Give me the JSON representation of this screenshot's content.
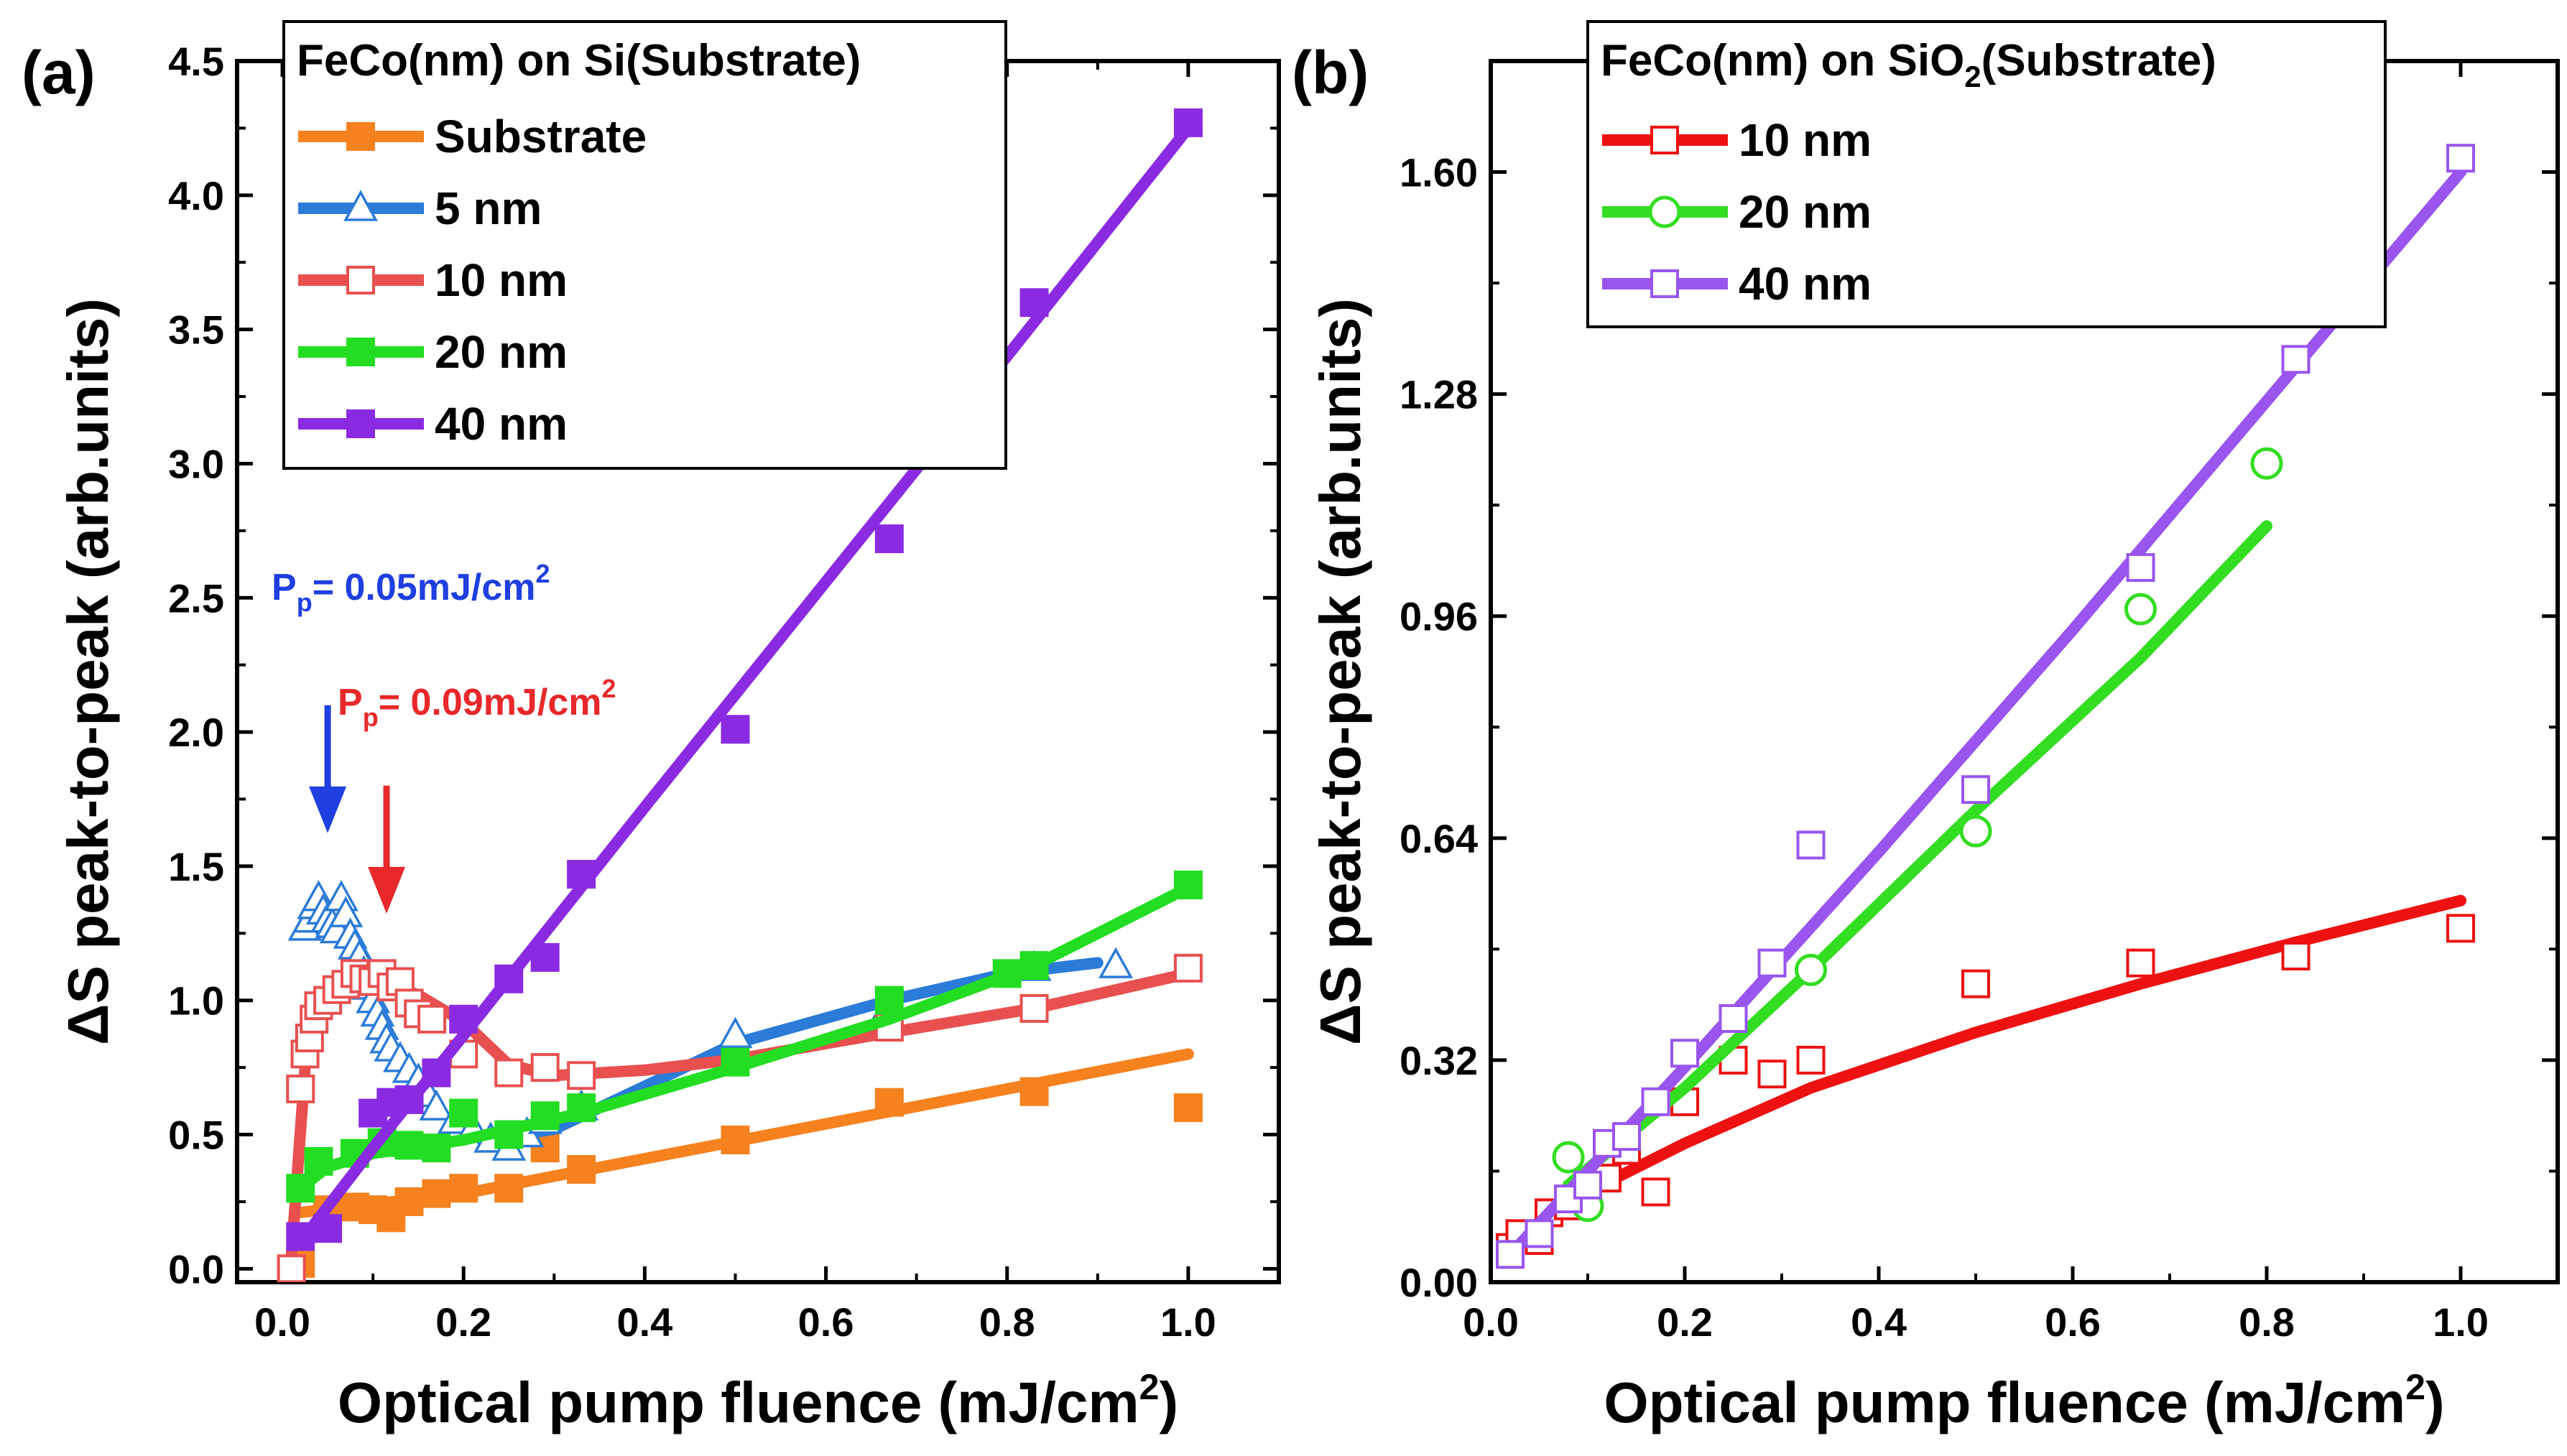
{
  "chart_data": [
    {
      "id": "a",
      "type": "scatter",
      "panel_label": "(a)",
      "xlabel": "Optical pump fluence (mJ/cm",
      "xlabel_sup": "2",
      "xlabel_close": ")",
      "ylabel": "ΔS peak-to-peak (arb.units)",
      "xlim": [
        -0.05,
        1.1
      ],
      "ylim": [
        -0.05,
        4.5
      ],
      "xticks": [
        0.0,
        0.2,
        0.4,
        0.6,
        0.8,
        1.0
      ],
      "xtick_labels": [
        "0.0",
        "0.2",
        "0.4",
        "0.6",
        "0.8",
        "1.0"
      ],
      "yticks": [
        0.0,
        0.5,
        1.0,
        1.5,
        2.0,
        2.5,
        3.0,
        3.5,
        4.0,
        4.5
      ],
      "ytick_labels": [
        "0.0",
        "0.5",
        "1.0",
        "1.5",
        "2.0",
        "2.5",
        "3.0",
        "3.5",
        "4.0",
        "4.5"
      ],
      "legend": {
        "title_pre": "FeCo(nm) on Si(Substrate)",
        "title_sub": "",
        "title_post": "",
        "location": "top-left"
      },
      "annotations": [
        {
          "id": "pp1",
          "text_pre": "P",
          "text_sub": "p",
          "text_mid": "= 0.05mJ/cm",
          "text_sup": "2",
          "color": "#1f3fe0",
          "arrow_x": 0.05,
          "arrow_from_y": 2.1,
          "arrow_to_y": 1.65
        },
        {
          "id": "pp2",
          "text_pre": "P",
          "text_sub": "p",
          "text_mid": "= 0.09mJ/cm",
          "text_sup": "2",
          "color": "#e8282a",
          "arrow_x": 0.115,
          "arrow_from_y": 1.8,
          "arrow_to_y": 1.35
        }
      ],
      "series": [
        {
          "name": "Substrate",
          "color": "#f5821f",
          "marker": "square",
          "filled": true,
          "points": [
            [
              0.02,
              0.02
            ],
            [
              0.05,
              0.22
            ],
            [
              0.08,
              0.23
            ],
            [
              0.1,
              0.22
            ],
            [
              0.12,
              0.19
            ],
            [
              0.14,
              0.25
            ],
            [
              0.17,
              0.28
            ],
            [
              0.2,
              0.3
            ],
            [
              0.25,
              0.3
            ],
            [
              0.29,
              0.45
            ],
            [
              0.33,
              0.37
            ],
            [
              0.5,
              0.48
            ],
            [
              0.67,
              0.62
            ],
            [
              0.83,
              0.66
            ],
            [
              1.0,
              0.6
            ]
          ],
          "fit": [
            [
              0.02,
              0.21
            ],
            [
              0.2,
              0.28
            ],
            [
              0.4,
              0.41
            ],
            [
              0.6,
              0.54
            ],
            [
              0.8,
              0.67
            ],
            [
              1.0,
              0.8
            ]
          ]
        },
        {
          "name": "5 nm",
          "color": "#2b7bd8",
          "marker": "triangle",
          "filled": false,
          "points": [
            [
              0.025,
              1.27
            ],
            [
              0.03,
              1.3
            ],
            [
              0.035,
              1.35
            ],
            [
              0.04,
              1.38
            ],
            [
              0.045,
              1.33
            ],
            [
              0.05,
              1.3
            ],
            [
              0.055,
              1.28
            ],
            [
              0.06,
              1.26
            ],
            [
              0.065,
              1.38
            ],
            [
              0.07,
              1.32
            ],
            [
              0.075,
              1.24
            ],
            [
              0.08,
              1.2
            ],
            [
              0.085,
              1.16
            ],
            [
              0.09,
              1.1
            ],
            [
              0.095,
              1.05
            ],
            [
              0.1,
              1.0
            ],
            [
              0.105,
              0.95
            ],
            [
              0.11,
              0.9
            ],
            [
              0.115,
              0.85
            ],
            [
              0.12,
              0.82
            ],
            [
              0.13,
              0.78
            ],
            [
              0.14,
              0.74
            ],
            [
              0.15,
              0.7
            ],
            [
              0.16,
              0.65
            ],
            [
              0.17,
              0.6
            ],
            [
              0.19,
              0.55
            ],
            [
              0.21,
              0.52
            ],
            [
              0.23,
              0.48
            ],
            [
              0.25,
              0.45
            ],
            [
              0.27,
              0.5
            ],
            [
              0.29,
              0.55
            ],
            [
              0.33,
              0.6
            ],
            [
              0.5,
              0.87
            ],
            [
              0.67,
              0.98
            ],
            [
              0.83,
              1.12
            ],
            [
              0.92,
              1.13
            ]
          ],
          "fit": [
            [
              0.22,
              0.48
            ],
            [
              0.3,
              0.52
            ],
            [
              0.4,
              0.68
            ],
            [
              0.5,
              0.84
            ],
            [
              0.67,
              1.0
            ],
            [
              0.8,
              1.1
            ],
            [
              0.9,
              1.14
            ]
          ]
        },
        {
          "name": "10 nm",
          "color": "#e85050",
          "marker": "square",
          "filled": false,
          "points": [
            [
              0.01,
              0.0
            ],
            [
              0.02,
              0.67
            ],
            [
              0.025,
              0.8
            ],
            [
              0.03,
              0.86
            ],
            [
              0.035,
              0.93
            ],
            [
              0.04,
              0.98
            ],
            [
              0.05,
              1.0
            ],
            [
              0.06,
              1.04
            ],
            [
              0.07,
              1.06
            ],
            [
              0.08,
              1.1
            ],
            [
              0.09,
              1.08
            ],
            [
              0.1,
              1.07
            ],
            [
              0.11,
              1.1
            ],
            [
              0.12,
              1.05
            ],
            [
              0.13,
              1.07
            ],
            [
              0.14,
              0.99
            ],
            [
              0.15,
              0.95
            ],
            [
              0.165,
              0.93
            ],
            [
              0.2,
              0.8
            ],
            [
              0.25,
              0.73
            ],
            [
              0.29,
              0.75
            ],
            [
              0.33,
              0.72
            ],
            [
              0.67,
              0.9
            ],
            [
              0.83,
              0.97
            ],
            [
              1.0,
              1.12
            ]
          ],
          "fit": [
            [
              0.01,
              0.05
            ],
            [
              0.025,
              0.75
            ],
            [
              0.05,
              1.0
            ],
            [
              0.1,
              1.08
            ],
            [
              0.15,
              1.02
            ],
            [
              0.2,
              0.92
            ],
            [
              0.25,
              0.76
            ],
            [
              0.3,
              0.72
            ],
            [
              0.4,
              0.74
            ],
            [
              0.5,
              0.78
            ],
            [
              0.67,
              0.88
            ],
            [
              0.83,
              0.97
            ],
            [
              1.0,
              1.1
            ]
          ]
        },
        {
          "name": "20 nm",
          "color": "#22dd22",
          "marker": "square",
          "filled": true,
          "points": [
            [
              0.02,
              0.3
            ],
            [
              0.04,
              0.4
            ],
            [
              0.08,
              0.43
            ],
            [
              0.11,
              0.47
            ],
            [
              0.14,
              0.46
            ],
            [
              0.17,
              0.45
            ],
            [
              0.2,
              0.58
            ],
            [
              0.25,
              0.5
            ],
            [
              0.29,
              0.57
            ],
            [
              0.33,
              0.6
            ],
            [
              0.5,
              0.77
            ],
            [
              0.67,
              1.0
            ],
            [
              0.8,
              1.1
            ],
            [
              0.83,
              1.13
            ],
            [
              1.0,
              1.43
            ]
          ],
          "fit": [
            [
              0.02,
              0.3
            ],
            [
              0.05,
              0.38
            ],
            [
              0.1,
              0.43
            ],
            [
              0.2,
              0.48
            ],
            [
              0.33,
              0.58
            ],
            [
              0.5,
              0.75
            ],
            [
              0.67,
              0.93
            ],
            [
              0.83,
              1.13
            ],
            [
              1.0,
              1.42
            ]
          ]
        },
        {
          "name": "40 nm",
          "color": "#8a2be2",
          "marker": "square",
          "filled": true,
          "points": [
            [
              0.02,
              0.12
            ],
            [
              0.05,
              0.15
            ],
            [
              0.1,
              0.58
            ],
            [
              0.12,
              0.62
            ],
            [
              0.14,
              0.63
            ],
            [
              0.17,
              0.73
            ],
            [
              0.2,
              0.93
            ],
            [
              0.25,
              1.08
            ],
            [
              0.29,
              1.16
            ],
            [
              0.33,
              1.47
            ],
            [
              0.5,
              2.01
            ],
            [
              0.67,
              2.72
            ],
            [
              0.83,
              3.6
            ],
            [
              1.0,
              4.27
            ]
          ],
          "fit": [
            [
              0.02,
              0.1
            ],
            [
              0.1,
              0.45
            ],
            [
              0.2,
              0.87
            ],
            [
              0.4,
              1.72
            ],
            [
              0.6,
              2.56
            ],
            [
              0.8,
              3.4
            ],
            [
              1.0,
              4.25
            ]
          ]
        }
      ]
    },
    {
      "id": "b",
      "type": "scatter",
      "panel_label": "(b)",
      "xlabel": "Optical pump fluence (mJ/cm",
      "xlabel_sup": "2",
      "xlabel_close": ")",
      "ylabel": "ΔS peak-to-peak (arb.units)",
      "xlim": [
        0.0,
        1.1
      ],
      "ylim": [
        0.0,
        1.76
      ],
      "xticks": [
        0.0,
        0.2,
        0.4,
        0.6,
        0.8,
        1.0
      ],
      "xtick_labels": [
        "0.0",
        "0.2",
        "0.4",
        "0.6",
        "0.8",
        "1.0"
      ],
      "yticks": [
        0.0,
        0.32,
        0.64,
        0.96,
        1.28,
        1.6
      ],
      "ytick_labels": [
        "0.00",
        "0.32",
        "0.64",
        "0.96",
        "1.28",
        "1.60"
      ],
      "legend": {
        "title_pre": "FeCo(nm) on SiO",
        "title_sub": "2",
        "title_post": "(Substrate)",
        "location": "top-left"
      },
      "annotations": [],
      "series": [
        {
          "name": "10 nm",
          "color": "#ee1111",
          "marker": "square",
          "filled": false,
          "points": [
            [
              0.02,
              0.05
            ],
            [
              0.03,
              0.07
            ],
            [
              0.05,
              0.06
            ],
            [
              0.06,
              0.1
            ],
            [
              0.08,
              0.11
            ],
            [
              0.1,
              0.12
            ],
            [
              0.12,
              0.15
            ],
            [
              0.14,
              0.19
            ],
            [
              0.17,
              0.13
            ],
            [
              0.2,
              0.26
            ],
            [
              0.25,
              0.32
            ],
            [
              0.29,
              0.3
            ],
            [
              0.33,
              0.32
            ],
            [
              0.5,
              0.43
            ],
            [
              0.67,
              0.46
            ],
            [
              0.83,
              0.47
            ],
            [
              1.0,
              0.51
            ]
          ],
          "fit": [
            [
              0.02,
              0.06
            ],
            [
              0.1,
              0.13
            ],
            [
              0.2,
              0.2
            ],
            [
              0.33,
              0.28
            ],
            [
              0.5,
              0.36
            ],
            [
              0.67,
              0.43
            ],
            [
              0.83,
              0.49
            ],
            [
              1.0,
              0.55
            ]
          ]
        },
        {
          "name": "20 nm",
          "color": "#33dd22",
          "marker": "circle",
          "filled": false,
          "points": [
            [
              0.08,
              0.18
            ],
            [
              0.1,
              0.11
            ],
            [
              0.33,
              0.45
            ],
            [
              0.5,
              0.65
            ],
            [
              0.67,
              0.97
            ],
            [
              0.8,
              1.18
            ]
          ],
          "fit": [
            [
              0.08,
              0.14
            ],
            [
              0.2,
              0.28
            ],
            [
              0.33,
              0.45
            ],
            [
              0.5,
              0.68
            ],
            [
              0.67,
              0.9
            ],
            [
              0.8,
              1.09
            ]
          ]
        },
        {
          "name": "40 nm",
          "color": "#9955ee",
          "marker": "square",
          "filled": false,
          "points": [
            [
              0.02,
              0.04
            ],
            [
              0.05,
              0.07
            ],
            [
              0.08,
              0.12
            ],
            [
              0.1,
              0.14
            ],
            [
              0.12,
              0.2
            ],
            [
              0.14,
              0.21
            ],
            [
              0.17,
              0.26
            ],
            [
              0.2,
              0.33
            ],
            [
              0.25,
              0.38
            ],
            [
              0.29,
              0.46
            ],
            [
              0.33,
              0.63
            ],
            [
              0.5,
              0.71
            ],
            [
              0.67,
              1.03
            ],
            [
              0.83,
              1.33
            ],
            [
              1.0,
              1.62
            ]
          ],
          "fit": [
            [
              0.02,
              0.04
            ],
            [
              0.2,
              0.31
            ],
            [
              0.4,
              0.62
            ],
            [
              0.6,
              0.94
            ],
            [
              0.8,
              1.27
            ],
            [
              1.0,
              1.6
            ]
          ]
        }
      ]
    }
  ]
}
